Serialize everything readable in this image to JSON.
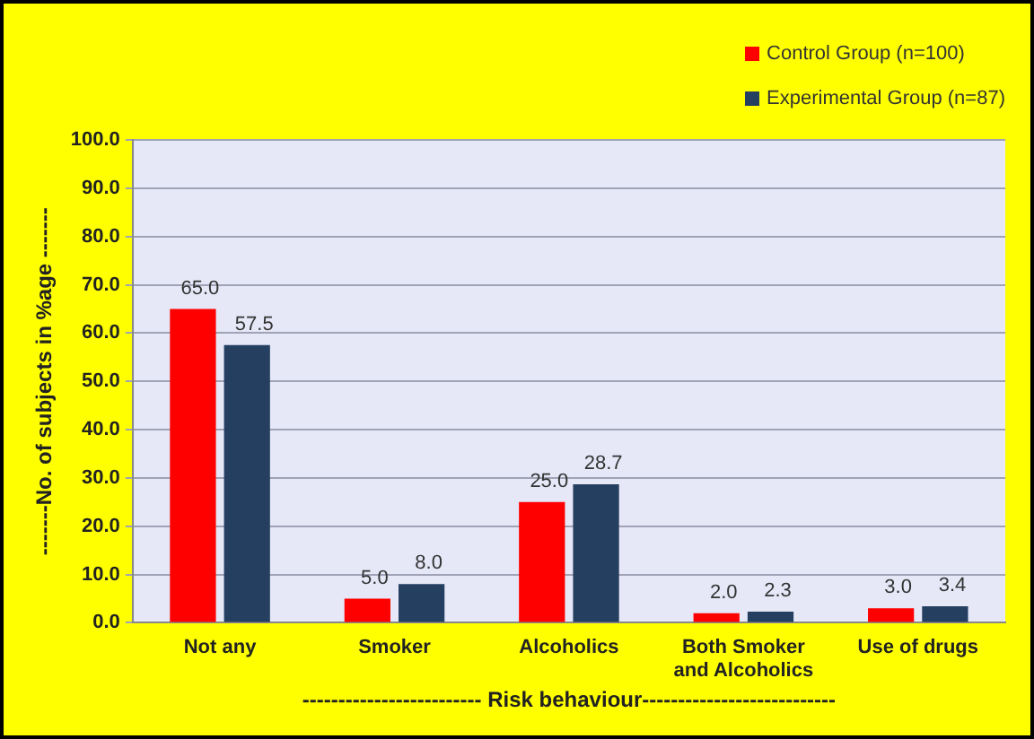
{
  "chart_data": {
    "type": "bar",
    "xlabel": "------------------------- Risk behaviour---------------------------",
    "ylabel": "-------No. of subjects in %age -------",
    "categories": [
      "Not any",
      "Smoker",
      "Alcoholics",
      "Both Smoker and Alcoholics",
      "Use of drugs"
    ],
    "series": [
      {
        "name": "Control Group (n=100)",
        "color": "#ff0000",
        "values": [
          65,
          5,
          25,
          2,
          3
        ],
        "value_labels": [
          "65.0",
          "5.0",
          "25.0",
          "2.0",
          "3.0"
        ]
      },
      {
        "name": "Experimental Group (n=87)",
        "color": "#243f60",
        "values": [
          57.5,
          8,
          28.7,
          2.3,
          3.4
        ],
        "value_labels": [
          "57.5",
          "8.0",
          "28.7",
          "2.3",
          "3.4"
        ]
      }
    ],
    "ylim": [
      0,
      100
    ],
    "yticks": [
      {
        "value": 0,
        "label": "0.0"
      },
      {
        "value": 10,
        "label": "10.0"
      },
      {
        "value": 20,
        "label": "20.0"
      },
      {
        "value": 30,
        "label": "30.0"
      },
      {
        "value": 40,
        "label": "40.0"
      },
      {
        "value": 50,
        "label": "50.0"
      },
      {
        "value": 60,
        "label": "60.0"
      },
      {
        "value": 70,
        "label": "70.0"
      },
      {
        "value": 80,
        "label": "80.0"
      },
      {
        "value": 90,
        "label": "90.0"
      },
      {
        "value": 100,
        "label": "100.0"
      }
    ],
    "grid": "y",
    "legend": "top right"
  }
}
